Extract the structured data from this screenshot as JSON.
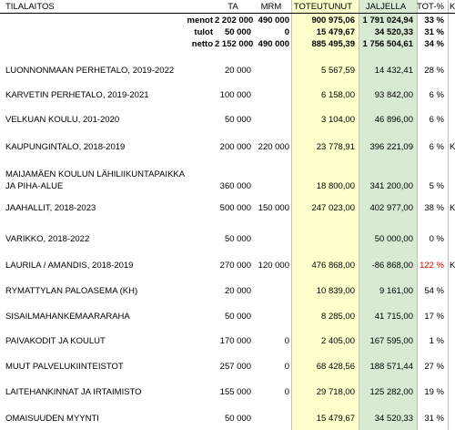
{
  "header": {
    "name": "TILALAITOS",
    "ta": "TA",
    "mrm": "MRM",
    "toteutunut": "TOTEUTUNUT",
    "jaljella": "JALJELLA",
    "tot_pct": "TOT-%",
    "extra": "K"
  },
  "summary": [
    {
      "label": "menot",
      "ta": "2 202 000",
      "mrm": "490 000",
      "tot": "900 975,06",
      "jal": "1 791 024,94",
      "pct": "33 %"
    },
    {
      "label": "tulot",
      "ta": "50 000",
      "mrm": "0",
      "tot": "15 479,67",
      "jal": "34 520,33",
      "pct": "31 %"
    },
    {
      "label": "netto",
      "ta": "2 152 000",
      "mrm": "490 000",
      "tot": "885 495,39",
      "jal": "1 756 504,61",
      "pct": "34 %"
    }
  ],
  "rows": [
    {
      "line1": "LUONNONMAAN PERHETALO, 2019-2022",
      "line2": "",
      "ta": "20 000",
      "mrm": "",
      "tot": "5 567,59",
      "jal": "14 432,41",
      "pct": "28 %",
      "extra": ""
    },
    {
      "line1": "KARVETIN PERHETALO, 2019-2021",
      "line2": "",
      "ta": "100 000",
      "mrm": "",
      "tot": "6 158,00",
      "jal": "93 842,00",
      "pct": "6 %",
      "extra": ""
    },
    {
      "line1": "VELKUAN KOULU, 201-2020",
      "line2": "",
      "ta": "50 000",
      "mrm": "",
      "tot": "3 104,00",
      "jal": "46 896,00",
      "pct": "6 %",
      "extra": ""
    },
    {
      "line1": "KAUPUNGINTALO, 2018-2019",
      "line2": "",
      "ta": "200 000",
      "mrm": "220 000",
      "tot": "23 778,91",
      "jal": "396 221,09",
      "pct": "6 %",
      "extra": "K"
    },
    {
      "line1": "MAIJAMÄEN KOULUN LÄHILIIKUNTAPAIKKA",
      "line2": "JA PIHA-ALUE",
      "ta": "360 000",
      "mrm": "",
      "tot": "18 800,00",
      "jal": "341 200,00",
      "pct": "5 %",
      "extra": ""
    },
    {
      "line1": "JAAHALLIT, 2018-2023",
      "line2": "",
      "ta": "500 000",
      "mrm": "150 000",
      "tot": "247 023,00",
      "jal": "402 977,00",
      "pct": "38 %",
      "extra": "K"
    },
    {
      "line1": "VARIKKO, 2018-2022",
      "line2": "",
      "ta": "50 000",
      "mrm": "",
      "tot": "",
      "jal": "50 000,00",
      "pct": "0 %",
      "extra": ""
    },
    {
      "line1": "LAURILA / AMANDIS, 2018-2019",
      "line2": "",
      "ta": "270 000",
      "mrm": "120 000",
      "tot": "476 868,00",
      "jal": "-86 868,00",
      "pct": "122 %",
      "extra": "K",
      "pct_red": true
    },
    {
      "line1": "RYMATTYLAN PALOASEMA (KH)",
      "line2": "",
      "ta": "20 000",
      "mrm": "",
      "tot": "10 839,00",
      "jal": "9 161,00",
      "pct": "54 %",
      "extra": ""
    },
    {
      "line1": "SISAILMAHANKEMAARARAHA",
      "line2": "",
      "ta": "50 000",
      "mrm": "",
      "tot": "8 285,00",
      "jal": "41 715,00",
      "pct": "17 %",
      "extra": ""
    },
    {
      "line1": "PAIVAKODIT JA KOULUT",
      "line2": "",
      "ta": "170 000",
      "mrm": "0",
      "tot": "2 405,00",
      "jal": "167 595,00",
      "pct": "1 %",
      "extra": ""
    },
    {
      "line1": "MUUT PALVELUKIINTEISTOT",
      "line2": "",
      "ta": "257 000",
      "mrm": "0",
      "tot": "68 428,56",
      "jal": "188 571,44",
      "pct": "27 %",
      "extra": ""
    },
    {
      "line1": "LAITEHANKINNAT JA IRTAIMISTO",
      "line2": "",
      "ta": "155 000",
      "mrm": "0",
      "tot": "29 718,00",
      "jal": "125 282,00",
      "pct": "19 %",
      "extra": ""
    },
    {
      "line1": "OMAISUUDEN MYYNTI",
      "line2": "",
      "ta": "50 000",
      "mrm": "",
      "tot": "15 479,67",
      "jal": "34 520,33",
      "pct": "31 %",
      "extra": ""
    }
  ]
}
